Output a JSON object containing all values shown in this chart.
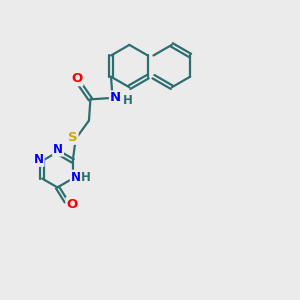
{
  "bg_color": "#ebebeb",
  "bond_color": "#2d6e6e",
  "bond_width": 1.6,
  "atom_colors": {
    "O": "#ff0000",
    "N": "#0000ff",
    "S": "#ccaa00",
    "C": "#2d6e6e"
  },
  "font_size": 8.5,
  "fig_size": [
    3.0,
    3.0
  ],
  "dpi": 100
}
